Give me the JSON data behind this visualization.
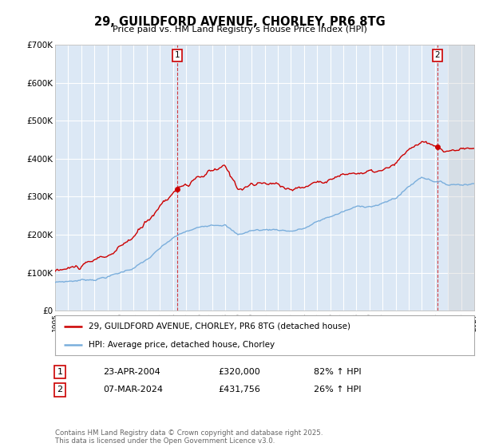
{
  "title1": "29, GUILDFORD AVENUE, CHORLEY, PR6 8TG",
  "title2": "Price paid vs. HM Land Registry's House Price Index (HPI)",
  "background_color": "#ffffff",
  "plot_bg_color": "#dce8f5",
  "grid_color": "#ffffff",
  "red_color": "#cc0000",
  "blue_color": "#7aaedc",
  "annotation1_date": "23-APR-2004",
  "annotation1_price": "£320,000",
  "annotation1_hpi": "82% ↑ HPI",
  "annotation2_date": "07-MAR-2024",
  "annotation2_price": "£431,756",
  "annotation2_hpi": "26% ↑ HPI",
  "legend1": "29, GUILDFORD AVENUE, CHORLEY, PR6 8TG (detached house)",
  "legend2": "HPI: Average price, detached house, Chorley",
  "footer": "Contains HM Land Registry data © Crown copyright and database right 2025.\nThis data is licensed under the Open Government Licence v3.0.",
  "xmin": 1995,
  "xmax": 2027,
  "ymin": 0,
  "ymax": 700000,
  "marker1_year": 2004.31,
  "marker1_value": 320000,
  "marker2_year": 2024.18,
  "marker2_value": 431756,
  "vline1_year": 2004.31,
  "vline2_year": 2024.18
}
